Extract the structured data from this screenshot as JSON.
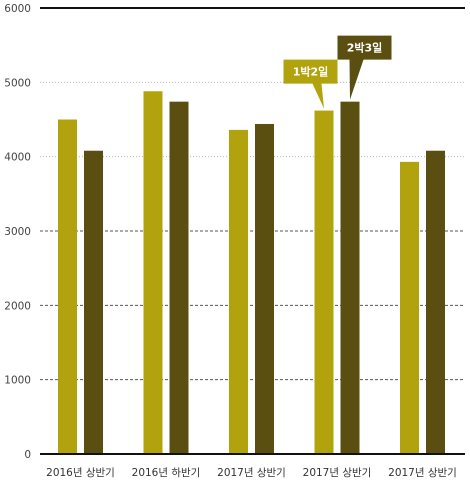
{
  "chart_data": {
    "type": "bar",
    "categories": [
      "2016년 상반기",
      "2016년 하반기",
      "2017년 상반기",
      "2017년 상반기",
      "2017년 상반기"
    ],
    "series": [
      {
        "values": [
          4500,
          4880,
          4360,
          4620,
          3930
        ],
        "color": "#b2a30e"
      },
      {
        "values": [
          4080,
          4740,
          4440,
          4740,
          4080
        ],
        "color": "#5a4f10"
      }
    ],
    "ylim": [
      0,
      6000
    ],
    "yticks": [
      0,
      1000,
      2000,
      3000,
      4000,
      5000,
      6000
    ],
    "grid": true,
    "annotations": [
      {
        "text": "1박2일",
        "category_index": 3,
        "series_index": 0,
        "color": "#b2a30e"
      },
      {
        "text": "2박3일",
        "category_index": 3,
        "series_index": 1,
        "color": "#5a4f10"
      }
    ]
  }
}
